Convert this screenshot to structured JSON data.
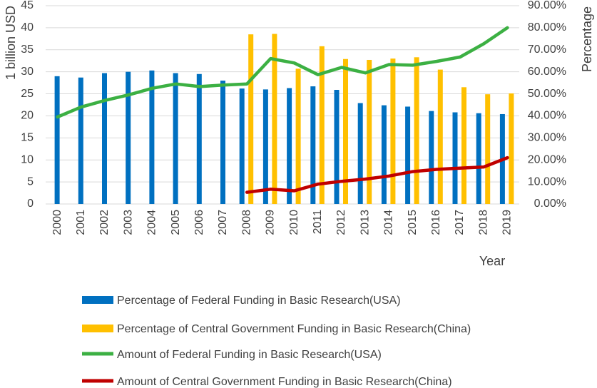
{
  "chart_data": {
    "type": "bar",
    "categories": [
      "2000",
      "2001",
      "2002",
      "2003",
      "2004",
      "2005",
      "2006",
      "2007",
      "2008",
      "2009",
      "2010",
      "2011",
      "2012",
      "2013",
      "2014",
      "2015",
      "2016",
      "2017",
      "2018",
      "2019"
    ],
    "series": [
      {
        "name": "Percentage of Federal Funding in Basic Research(USA)",
        "type": "bar",
        "axis": "left",
        "color": "#0070C0",
        "values": [
          29.0,
          28.7,
          29.7,
          30.0,
          30.3,
          29.7,
          29.5,
          28.0,
          26.2,
          26.0,
          26.3,
          26.7,
          25.9,
          22.9,
          22.4,
          22.1,
          21.1,
          20.8,
          20.6,
          20.4
        ]
      },
      {
        "name": "Percentage of Central Government Funding in Basic Research(China)",
        "type": "bar",
        "axis": "left",
        "color": "#FFC000",
        "values": [
          null,
          null,
          null,
          null,
          null,
          null,
          null,
          null,
          38.5,
          38.6,
          30.7,
          35.8,
          32.9,
          32.7,
          33.0,
          33.3,
          30.5,
          26.5,
          24.9,
          25.1
        ]
      },
      {
        "name": "Amount of Federal Funding in Basic Research(USA)",
        "type": "line",
        "axis": "right",
        "color": "#3CB043",
        "values": [
          39.5,
          44.0,
          47.0,
          49.5,
          52.5,
          54.5,
          53.3,
          54.0,
          54.5,
          66.0,
          64.0,
          58.7,
          62.0,
          59.5,
          63.3,
          63.0,
          64.7,
          66.7,
          72.7,
          80.0
        ]
      },
      {
        "name": "Amount of Central Government Funding in Basic Research(China)",
        "type": "line",
        "axis": "right",
        "color": "#C00000",
        "values": [
          null,
          null,
          null,
          null,
          null,
          null,
          null,
          null,
          5.3,
          6.7,
          6.0,
          9.0,
          10.3,
          11.3,
          12.7,
          14.7,
          15.7,
          16.3,
          16.8,
          21.0
        ]
      }
    ],
    "yaxis_left": {
      "label": "1 billion USD",
      "min": 0,
      "max": 45,
      "step": 5,
      "ticks": [
        "0",
        "5",
        "10",
        "15",
        "20",
        "25",
        "30",
        "35",
        "40",
        "45"
      ]
    },
    "yaxis_right": {
      "label": "Percentage",
      "min": 0,
      "max": 90,
      "step": 10,
      "ticks": [
        "0.00%",
        "10.00%",
        "20.00%",
        "30.00%",
        "40.00%",
        "50.00%",
        "60.00%",
        "70.00%",
        "80.00%",
        "90.00%"
      ]
    },
    "xlabel": "Year",
    "grid": true,
    "legend_position": "bottom"
  }
}
